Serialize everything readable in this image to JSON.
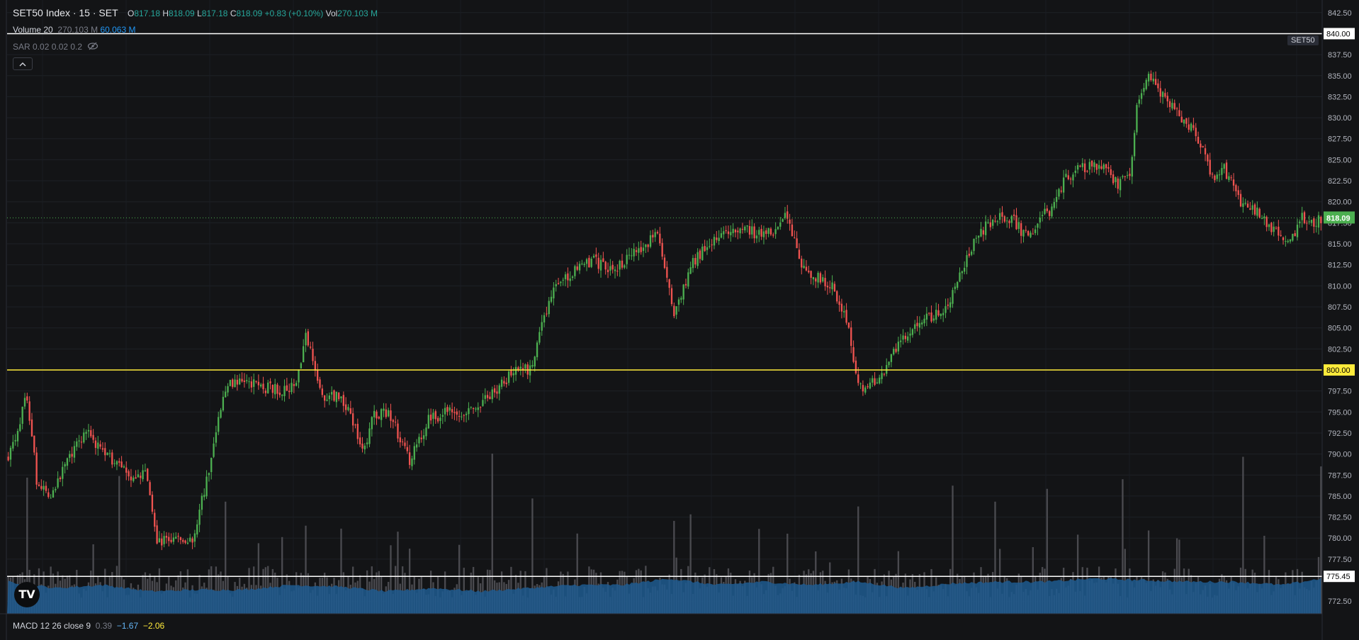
{
  "header": {
    "symbol_line": "SET50 Index · 15 · SET",
    "ohlc": [
      {
        "key": "O",
        "value": "817.18"
      },
      {
        "key": "H",
        "value": "818.09"
      },
      {
        "key": "L",
        "value": "817.18"
      },
      {
        "key": "C",
        "value": "818.09"
      }
    ],
    "change": "+0.83 (+0.10%)",
    "vol_key": "Vol",
    "vol_value": "270.103 M"
  },
  "indicators": {
    "volume_label": "Volume 20",
    "volume_value": "270.103 M",
    "volume_ma": "60.063 M",
    "sar_label": "SAR 0.02 0.02 0.2",
    "collapse_icon": "chevron-up-icon",
    "macd_label": "MACD 12 26 close 9",
    "macd_values": [
      "0.39",
      "−1.67",
      "−2.06"
    ]
  },
  "symbol_tag": "SET50",
  "logo_text": "TV",
  "colors": {
    "background": "#131416",
    "up": "#4caf50",
    "down": "#ef5350",
    "volume": "#4a4a4f",
    "volume_area": "#1f5a8f",
    "support_line": "#ffeb3b",
    "price_label_bg": "#4caf50",
    "macd_line": "#2196f3",
    "macd_signal": "#ffeb3b"
  },
  "chart_data": {
    "type": "candlestick",
    "title": "SET50 Index · 15 · SET",
    "y_axis_ticks": [
      "842.50",
      "840.00",
      "837.50",
      "835.00",
      "832.50",
      "830.00",
      "827.50",
      "825.00",
      "822.50",
      "820.00",
      "817.50",
      "815.00",
      "812.50",
      "810.00",
      "807.50",
      "805.00",
      "802.50",
      "800.00",
      "797.50",
      "795.00",
      "792.50",
      "790.00",
      "787.50",
      "785.00",
      "782.50",
      "780.00",
      "777.50",
      "775.45",
      "772.50"
    ],
    "ylim": [
      771,
      844
    ],
    "horizontal_lines": [
      {
        "price": 840.0,
        "label": "840.00",
        "color": "#ffffff"
      },
      {
        "price": 800.0,
        "label": "800.00",
        "color": "#ffeb3b"
      },
      {
        "price": 775.45,
        "label": "775.45",
        "color": "#ffffff"
      }
    ],
    "last_price": {
      "price": 818.09,
      "label": "818.09"
    },
    "close_path": [
      [
        0,
        789.5
      ],
      [
        8,
        797
      ],
      [
        12,
        787
      ],
      [
        18,
        785
      ],
      [
        25,
        789
      ],
      [
        33,
        793
      ],
      [
        40,
        790
      ],
      [
        47,
        789
      ],
      [
        53,
        787
      ],
      [
        58,
        788
      ],
      [
        63,
        779.5
      ],
      [
        70,
        780
      ],
      [
        78,
        780
      ],
      [
        85,
        788
      ],
      [
        92,
        798
      ],
      [
        100,
        798.5
      ],
      [
        108,
        798
      ],
      [
        115,
        797.5
      ],
      [
        122,
        798
      ],
      [
        126,
        804
      ],
      [
        133,
        797
      ],
      [
        140,
        797
      ],
      [
        145,
        795
      ],
      [
        150,
        790
      ],
      [
        155,
        795
      ],
      [
        162,
        794.5
      ],
      [
        170,
        789
      ],
      [
        178,
        794
      ],
      [
        185,
        795
      ],
      [
        192,
        795
      ],
      [
        200,
        796
      ],
      [
        208,
        798
      ],
      [
        215,
        800
      ],
      [
        222,
        800
      ],
      [
        226,
        806
      ],
      [
        232,
        810
      ],
      [
        240,
        812
      ],
      [
        248,
        813
      ],
      [
        255,
        812
      ],
      [
        262,
        813
      ],
      [
        268,
        814.5
      ],
      [
        275,
        816
      ],
      [
        282,
        807
      ],
      [
        290,
        813
      ],
      [
        298,
        815
      ],
      [
        306,
        817
      ],
      [
        312,
        817
      ],
      [
        318,
        816
      ],
      [
        325,
        816.5
      ],
      [
        330,
        818.5
      ],
      [
        335,
        813
      ],
      [
        342,
        811
      ],
      [
        349,
        810
      ],
      [
        355,
        806
      ],
      [
        360,
        798
      ],
      [
        363,
        797.5
      ],
      [
        368,
        799
      ],
      [
        373,
        801
      ],
      [
        380,
        804
      ],
      [
        386,
        806
      ],
      [
        392,
        806.5
      ],
      [
        397,
        807
      ],
      [
        403,
        811
      ],
      [
        410,
        816
      ],
      [
        418,
        818
      ],
      [
        425,
        818
      ],
      [
        432,
        815.5
      ],
      [
        437,
        818
      ],
      [
        443,
        819.5
      ],
      [
        448,
        823
      ],
      [
        455,
        824
      ],
      [
        462,
        824.5
      ],
      [
        470,
        822
      ],
      [
        475,
        823.5
      ],
      [
        478,
        831
      ],
      [
        483,
        835
      ],
      [
        490,
        832
      ],
      [
        497,
        830
      ],
      [
        503,
        828
      ],
      [
        510,
        823
      ],
      [
        515,
        824
      ],
      [
        522,
        820
      ],
      [
        530,
        818.5
      ],
      [
        538,
        816
      ],
      [
        544,
        815.5
      ],
      [
        548,
        818
      ],
      [
        552,
        817.5
      ],
      [
        556,
        818.09
      ]
    ],
    "volume_path": [
      [
        0,
        0.2
      ],
      [
        20,
        0.16
      ],
      [
        40,
        0.18
      ],
      [
        60,
        0.14
      ],
      [
        80,
        0.15
      ],
      [
        100,
        0.15
      ],
      [
        120,
        0.18
      ],
      [
        140,
        0.17
      ],
      [
        160,
        0.14
      ],
      [
        180,
        0.16
      ],
      [
        200,
        0.14
      ],
      [
        220,
        0.16
      ],
      [
        240,
        0.18
      ],
      [
        260,
        0.18
      ],
      [
        280,
        0.22
      ],
      [
        300,
        0.18
      ],
      [
        320,
        0.2
      ],
      [
        340,
        0.18
      ],
      [
        360,
        0.2
      ],
      [
        380,
        0.16
      ],
      [
        400,
        0.19
      ],
      [
        420,
        0.2
      ],
      [
        440,
        0.2
      ],
      [
        460,
        0.22
      ],
      [
        480,
        0.21
      ],
      [
        500,
        0.2
      ],
      [
        520,
        0.2
      ],
      [
        540,
        0.18
      ],
      [
        556,
        0.22
      ]
    ],
    "volume_spikes": [
      [
        8,
        0.85
      ],
      [
        47,
        0.86
      ],
      [
        92,
        0.7
      ],
      [
        126,
        0.55
      ],
      [
        205,
        1.0
      ],
      [
        222,
        0.72
      ],
      [
        282,
        0.58
      ],
      [
        318,
        0.53
      ],
      [
        330,
        0.5
      ],
      [
        360,
        0.67
      ],
      [
        400,
        0.8
      ],
      [
        418,
        0.7
      ],
      [
        440,
        0.78
      ],
      [
        472,
        0.84
      ],
      [
        483,
        0.52
      ],
      [
        523,
        0.98
      ],
      [
        556,
        0.92
      ]
    ],
    "volume_baseline": 0.1
  }
}
